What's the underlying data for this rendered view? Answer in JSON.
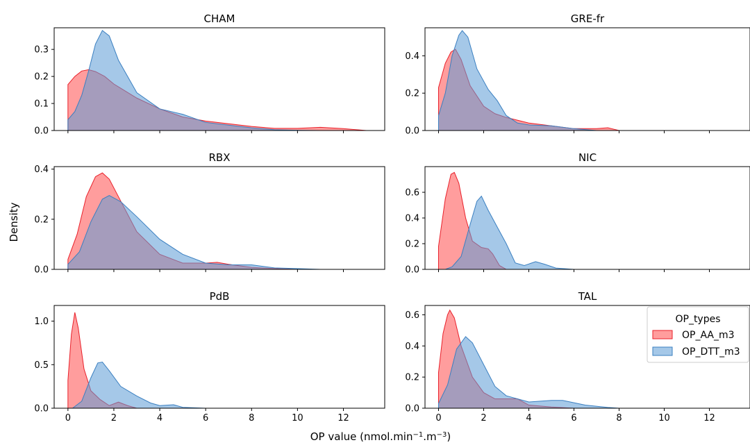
{
  "figure": {
    "xlabel_main": "OP value (nmol.min",
    "xlabel_sup1": "−1",
    "xlabel_mid": ".m",
    "xlabel_sup2": "−3",
    "xlabel_end": ")",
    "ylabel": "Density"
  },
  "legend": {
    "title": "OP_types",
    "items": [
      "OP_AA_m3",
      "OP_DTT_m3"
    ]
  },
  "colors": {
    "OP_AA_m3": "#ff4d4d",
    "OP_DTT_m3": "#5b9bd5",
    "OP_AA_m3_line": "#e8202a",
    "OP_DTT_m3_line": "#3a7fc0"
  },
  "chart_data": [
    {
      "type": "area",
      "title": "CHAM",
      "xlim": [
        -0.6,
        13.8
      ],
      "ylim": [
        0,
        0.38
      ],
      "x_ticks": [
        0,
        2,
        4,
        6,
        8,
        10,
        12
      ],
      "x_tick_labels": [],
      "y_ticks": [
        "0.0",
        "0.1",
        "0.2",
        "0.3"
      ],
      "series": [
        {
          "name": "OP_AA_m3",
          "points": [
            [
              0,
              0.17
            ],
            [
              0.3,
              0.2
            ],
            [
              0.6,
              0.22
            ],
            [
              0.9,
              0.225
            ],
            [
              1.2,
              0.218
            ],
            [
              1.6,
              0.2
            ],
            [
              2,
              0.172
            ],
            [
              3,
              0.12
            ],
            [
              4,
              0.08
            ],
            [
              5,
              0.05
            ],
            [
              6,
              0.035
            ],
            [
              7,
              0.025
            ],
            [
              8,
              0.015
            ],
            [
              9,
              0.008
            ],
            [
              10,
              0.008
            ],
            [
              11,
              0.012
            ],
            [
              12,
              0.007
            ],
            [
              13,
              0
            ]
          ]
        },
        {
          "name": "OP_DTT_m3",
          "points": [
            [
              0,
              0.04
            ],
            [
              0.3,
              0.07
            ],
            [
              0.6,
              0.13
            ],
            [
              0.9,
              0.22
            ],
            [
              1.2,
              0.32
            ],
            [
              1.5,
              0.37
            ],
            [
              1.8,
              0.35
            ],
            [
              2.2,
              0.26
            ],
            [
              3,
              0.14
            ],
            [
              4,
              0.08
            ],
            [
              5,
              0.06
            ],
            [
              6,
              0.03
            ],
            [
              7,
              0.02
            ],
            [
              8,
              0.01
            ],
            [
              9,
              0.003
            ],
            [
              10,
              0.001
            ],
            [
              11,
              0
            ]
          ]
        }
      ]
    },
    {
      "type": "area",
      "title": "GRE-fr",
      "xlim": [
        -0.6,
        13.8
      ],
      "ylim": [
        0,
        0.55
      ],
      "x_ticks": [
        0,
        2,
        4,
        6,
        8,
        10,
        12
      ],
      "x_tick_labels": [],
      "y_ticks": [
        "0.0",
        "0.2",
        "0.4"
      ],
      "series": [
        {
          "name": "OP_AA_m3",
          "points": [
            [
              0,
              0.23
            ],
            [
              0.3,
              0.36
            ],
            [
              0.55,
              0.42
            ],
            [
              0.75,
              0.435
            ],
            [
              1,
              0.38
            ],
            [
              1.4,
              0.24
            ],
            [
              2,
              0.13
            ],
            [
              2.5,
              0.09
            ],
            [
              3,
              0.07
            ],
            [
              4,
              0.04
            ],
            [
              5,
              0.025
            ],
            [
              6,
              0.01
            ],
            [
              7,
              0.01
            ],
            [
              7.5,
              0.015
            ],
            [
              8,
              0
            ]
          ]
        },
        {
          "name": "OP_DTT_m3",
          "points": [
            [
              0,
              0.08
            ],
            [
              0.3,
              0.2
            ],
            [
              0.6,
              0.4
            ],
            [
              0.9,
              0.51
            ],
            [
              1.05,
              0.535
            ],
            [
              1.3,
              0.5
            ],
            [
              1.7,
              0.33
            ],
            [
              2.2,
              0.22
            ],
            [
              2.6,
              0.16
            ],
            [
              3,
              0.08
            ],
            [
              3.5,
              0.04
            ],
            [
              4,
              0.03
            ],
            [
              5,
              0.025
            ],
            [
              6,
              0.01
            ],
            [
              7,
              0
            ]
          ]
        }
      ]
    },
    {
      "type": "area",
      "title": "RBX",
      "xlim": [
        -0.6,
        13.8
      ],
      "ylim": [
        0,
        0.41
      ],
      "x_ticks": [
        0,
        2,
        4,
        6,
        8,
        10,
        12
      ],
      "x_tick_labels": [],
      "y_ticks": [
        "0.0",
        "0.2",
        "0.4"
      ],
      "series": [
        {
          "name": "OP_AA_m3",
          "points": [
            [
              0,
              0.04
            ],
            [
              0.4,
              0.14
            ],
            [
              0.8,
              0.29
            ],
            [
              1.2,
              0.37
            ],
            [
              1.5,
              0.385
            ],
            [
              1.8,
              0.36
            ],
            [
              2.2,
              0.29
            ],
            [
              3,
              0.15
            ],
            [
              4,
              0.06
            ],
            [
              5,
              0.025
            ],
            [
              6,
              0.025
            ],
            [
              6.5,
              0.028
            ],
            [
              7,
              0.02
            ],
            [
              8,
              0.008
            ],
            [
              9,
              0.003
            ],
            [
              10,
              0
            ]
          ]
        },
        {
          "name": "OP_DTT_m3",
          "points": [
            [
              0,
              0.02
            ],
            [
              0.5,
              0.07
            ],
            [
              1,
              0.19
            ],
            [
              1.5,
              0.28
            ],
            [
              1.8,
              0.295
            ],
            [
              2.3,
              0.27
            ],
            [
              3,
              0.21
            ],
            [
              4,
              0.12
            ],
            [
              5,
              0.06
            ],
            [
              6,
              0.025
            ],
            [
              7,
              0.018
            ],
            [
              8,
              0.018
            ],
            [
              9,
              0.006
            ],
            [
              10,
              0.003
            ],
            [
              11,
              0
            ]
          ]
        }
      ]
    },
    {
      "type": "area",
      "title": "NIC",
      "xlim": [
        -0.6,
        13.8
      ],
      "ylim": [
        0,
        0.8
      ],
      "x_ticks": [
        0,
        2,
        4,
        6,
        8,
        10,
        12
      ],
      "x_tick_labels": [],
      "y_ticks": [
        "0.0",
        "0.2",
        "0.4",
        "0.6"
      ],
      "series": [
        {
          "name": "OP_AA_m3",
          "points": [
            [
              0,
              0.18
            ],
            [
              0.3,
              0.55
            ],
            [
              0.55,
              0.74
            ],
            [
              0.7,
              0.755
            ],
            [
              0.9,
              0.67
            ],
            [
              1.2,
              0.4
            ],
            [
              1.5,
              0.22
            ],
            [
              1.9,
              0.17
            ],
            [
              2.2,
              0.16
            ],
            [
              2.4,
              0.12
            ],
            [
              2.7,
              0.03
            ],
            [
              3,
              0
            ]
          ]
        },
        {
          "name": "OP_DTT_m3",
          "points": [
            [
              0.3,
              0
            ],
            [
              0.6,
              0.02
            ],
            [
              1,
              0.1
            ],
            [
              1.4,
              0.35
            ],
            [
              1.7,
              0.53
            ],
            [
              1.9,
              0.57
            ],
            [
              2.2,
              0.46
            ],
            [
              2.6,
              0.33
            ],
            [
              3,
              0.2
            ],
            [
              3.4,
              0.05
            ],
            [
              3.8,
              0.03
            ],
            [
              4.3,
              0.06
            ],
            [
              4.7,
              0.04
            ],
            [
              5.2,
              0.01
            ],
            [
              6,
              0
            ]
          ]
        }
      ]
    },
    {
      "type": "area",
      "title": "PdB",
      "xlim": [
        -0.6,
        13.8
      ],
      "ylim": [
        0,
        1.18
      ],
      "x_ticks": [
        0,
        2,
        4,
        6,
        8,
        10,
        12
      ],
      "x_tick_labels": [
        "0",
        "2",
        "4",
        "6",
        "8",
        "10",
        "12"
      ],
      "y_ticks": [
        "0.0",
        "0.5",
        "1.0"
      ],
      "series": [
        {
          "name": "OP_AA_m3",
          "points": [
            [
              0,
              0.32
            ],
            [
              0.15,
              0.85
            ],
            [
              0.3,
              1.1
            ],
            [
              0.45,
              0.92
            ],
            [
              0.7,
              0.45
            ],
            [
              1,
              0.2
            ],
            [
              1.4,
              0.1
            ],
            [
              1.8,
              0.03
            ],
            [
              2.2,
              0.07
            ],
            [
              2.6,
              0.03
            ],
            [
              3,
              0
            ]
          ]
        },
        {
          "name": "OP_DTT_m3",
          "points": [
            [
              0.2,
              0
            ],
            [
              0.6,
              0.08
            ],
            [
              1,
              0.35
            ],
            [
              1.3,
              0.52
            ],
            [
              1.5,
              0.53
            ],
            [
              1.8,
              0.43
            ],
            [
              2.3,
              0.25
            ],
            [
              3,
              0.14
            ],
            [
              3.6,
              0.06
            ],
            [
              4,
              0.03
            ],
            [
              4.6,
              0.04
            ],
            [
              5,
              0.01
            ],
            [
              6,
              0
            ]
          ]
        }
      ]
    },
    {
      "type": "area",
      "title": "TAL",
      "xlim": [
        -0.6,
        13.8
      ],
      "ylim": [
        0,
        0.66
      ],
      "x_ticks": [
        0,
        2,
        4,
        6,
        8,
        10,
        12
      ],
      "x_tick_labels": [
        "0",
        "2",
        "4",
        "6",
        "8",
        "10",
        "12"
      ],
      "y_ticks": [
        "0.0",
        "0.2",
        "0.4",
        "0.6"
      ],
      "series": [
        {
          "name": "OP_AA_m3",
          "points": [
            [
              0,
              0.23
            ],
            [
              0.2,
              0.48
            ],
            [
              0.4,
              0.6
            ],
            [
              0.5,
              0.63
            ],
            [
              0.7,
              0.58
            ],
            [
              1,
              0.4
            ],
            [
              1.5,
              0.2
            ],
            [
              2,
              0.1
            ],
            [
              2.5,
              0.06
            ],
            [
              3,
              0.06
            ],
            [
              3.5,
              0.06
            ],
            [
              4,
              0.02
            ],
            [
              5,
              0.008
            ],
            [
              6,
              0
            ]
          ]
        },
        {
          "name": "OP_DTT_m3",
          "points": [
            [
              0,
              0.03
            ],
            [
              0.4,
              0.15
            ],
            [
              0.8,
              0.38
            ],
            [
              1.2,
              0.46
            ],
            [
              1.5,
              0.42
            ],
            [
              2,
              0.28
            ],
            [
              2.5,
              0.14
            ],
            [
              3,
              0.08
            ],
            [
              4,
              0.04
            ],
            [
              5,
              0.05
            ],
            [
              5.5,
              0.05
            ],
            [
              6.5,
              0.02
            ],
            [
              7.5,
              0.005
            ],
            [
              8,
              0
            ]
          ]
        }
      ]
    }
  ]
}
